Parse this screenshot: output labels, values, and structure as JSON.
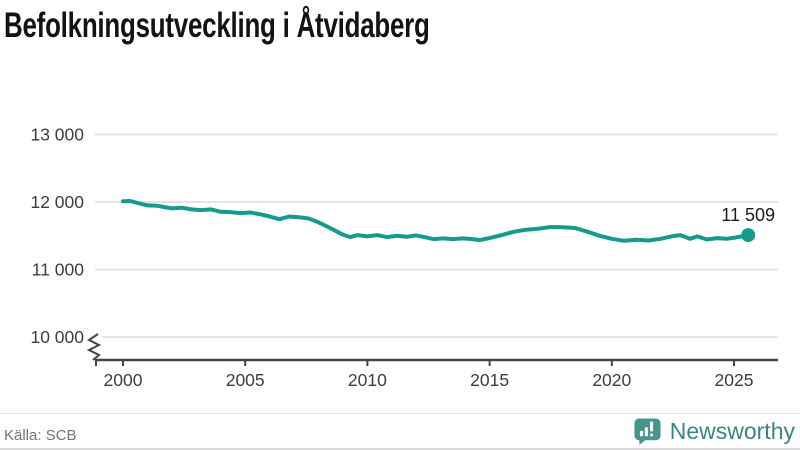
{
  "title": "Befolkningsutveckling i Åtvidaberg",
  "source": "Källa: SCB",
  "branding": {
    "name": "Newsworthy",
    "icon": "newsworthy-speech-bubble-barchart-icon"
  },
  "colors": {
    "line": "#149b8c",
    "grid": "#dcdcdc",
    "axis": "#454545",
    "tick_text": "#3d3d3d",
    "title_text": "#131313",
    "end_label_text": "#1c1c1c",
    "source_text": "#737373",
    "brand_icon": "#45948e",
    "brand_text": "#3a8781"
  },
  "chart_data": {
    "type": "line",
    "title": "Befolkningsutveckling i Åtvidaberg",
    "xlabel": "",
    "ylabel": "",
    "grid": "horizontal",
    "legend": "none",
    "axis_break": true,
    "ylim_shown": [
      10000,
      13000
    ],
    "xlim": [
      1998.9,
      2026.8
    ],
    "yticks": [
      {
        "value": 13000,
        "label": "13 000"
      },
      {
        "value": 12000,
        "label": "12 000"
      },
      {
        "value": 11000,
        "label": "11 000"
      },
      {
        "value": 10000,
        "label": "10 000"
      }
    ],
    "xticks": [
      {
        "value": 2000,
        "label": "2000"
      },
      {
        "value": 2005,
        "label": "2005"
      },
      {
        "value": 2010,
        "label": "2010"
      },
      {
        "value": 2015,
        "label": "2015"
      },
      {
        "value": 2020,
        "label": "2020"
      },
      {
        "value": 2025,
        "label": "2025"
      }
    ],
    "x": [
      2000.0,
      2000.3,
      2000.6,
      2001.0,
      2001.4,
      2001.7,
      2002.0,
      2002.4,
      2002.8,
      2003.2,
      2003.6,
      2004.0,
      2004.4,
      2004.8,
      2005.2,
      2005.6,
      2006.0,
      2006.4,
      2006.8,
      2007.2,
      2007.6,
      2008.0,
      2008.5,
      2009.0,
      2009.3,
      2009.6,
      2010.0,
      2010.4,
      2010.8,
      2011.2,
      2011.6,
      2012.0,
      2012.4,
      2012.7,
      2013.1,
      2013.5,
      2013.9,
      2014.3,
      2014.6,
      2015.0,
      2015.5,
      2016.0,
      2016.5,
      2017.0,
      2017.5,
      2018.0,
      2018.5,
      2019.0,
      2019.5,
      2020.0,
      2020.5,
      2021.0,
      2021.5,
      2022.0,
      2022.5,
      2022.8,
      2023.2,
      2023.5,
      2023.9,
      2024.3,
      2024.7,
      2025.1,
      2025.58
    ],
    "values": [
      12010,
      12015,
      11985,
      11950,
      11945,
      11925,
      11905,
      11915,
      11890,
      11880,
      11890,
      11855,
      11850,
      11835,
      11845,
      11820,
      11785,
      11745,
      11785,
      11775,
      11755,
      11700,
      11610,
      11515,
      11480,
      11510,
      11490,
      11510,
      11480,
      11500,
      11485,
      11505,
      11475,
      11450,
      11460,
      11450,
      11460,
      11450,
      11435,
      11465,
      11510,
      11560,
      11590,
      11605,
      11630,
      11625,
      11615,
      11560,
      11500,
      11455,
      11425,
      11440,
      11430,
      11455,
      11495,
      11510,
      11455,
      11490,
      11445,
      11465,
      11455,
      11475,
      11509
    ],
    "end_value": 11509,
    "end_label": "11 509"
  }
}
